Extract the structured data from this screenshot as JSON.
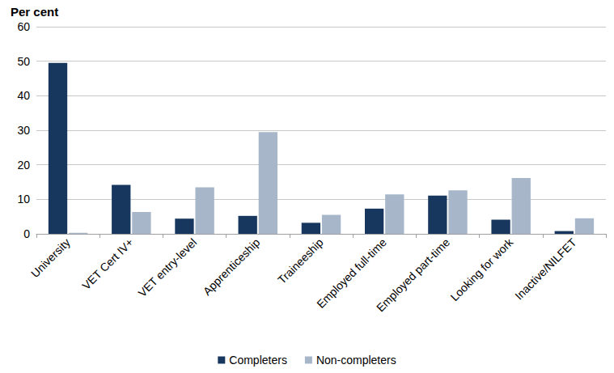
{
  "chart_data": {
    "type": "bar",
    "y_label": "Per cent",
    "categories": [
      "University",
      "VET Cert IV+",
      "VET entry-level",
      "Apprenticeship",
      "Traineeship",
      "Employed full-time",
      "Employed part-time",
      "Looking for work",
      "Inactive/NILFET"
    ],
    "series": [
      {
        "name": "Completers",
        "color": "#17375e",
        "values": [
          49.5,
          14.2,
          4.4,
          5.2,
          3.2,
          7.3,
          11.1,
          4.1,
          0.8
        ]
      },
      {
        "name": "Non-completers",
        "color": "#a7b6c9",
        "values": [
          0.3,
          6.3,
          13.5,
          29.5,
          5.5,
          11.4,
          12.6,
          16.2,
          4.5
        ]
      }
    ],
    "ylim": [
      0,
      60
    ],
    "yticks": [
      0,
      10,
      20,
      30,
      40,
      50,
      60
    ],
    "grid": true,
    "legend": "bottom"
  }
}
